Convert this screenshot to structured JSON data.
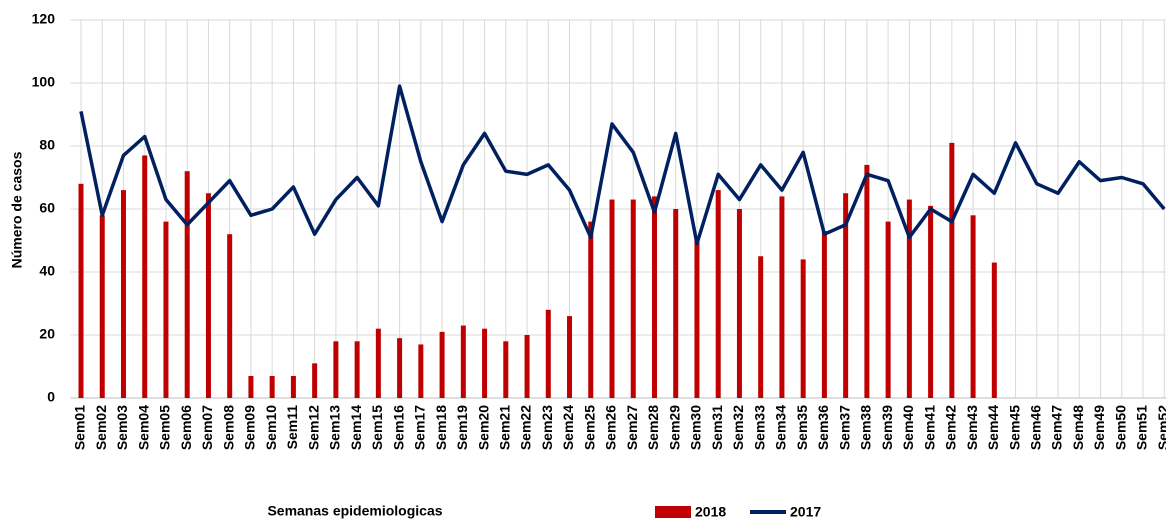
{
  "chart_data": {
    "type": "bar-line",
    "ylabel": "Número de casos",
    "xlabel": "Semanas epidemiologicas",
    "categories": [
      "Sem01",
      "Sem02",
      "Sem03",
      "Sem04",
      "Sem05",
      "Sem06",
      "Sem07",
      "Sem08",
      "Sem09",
      "Sem10",
      "Sem11",
      "Sem12",
      "Sem13",
      "Sem14",
      "Sem15",
      "Sem16",
      "Sem17",
      "Sem18",
      "Sem19",
      "Sem20",
      "Sem21",
      "Sem22",
      "Sem23",
      "Sem24",
      "Sem25",
      "Sem26",
      "Sem27",
      "Sem28",
      "Sem29",
      "Sem30",
      "Sem31",
      "Sem32",
      "Sem33",
      "Sem34",
      "Sem35",
      "Sem36",
      "Sem37",
      "Sem38",
      "Sem39",
      "Sem40",
      "Sem41",
      "Sem42",
      "Sem43",
      "Sem44",
      "Sem45",
      "Sem46",
      "Sem47",
      "Sem48",
      "Sem49",
      "Sem50",
      "Sem51",
      "Sem52"
    ],
    "series": [
      {
        "name": "2018",
        "type": "bar",
        "color": "#c00000",
        "values": [
          68,
          58,
          66,
          77,
          56,
          72,
          65,
          52,
          7,
          7,
          7,
          11,
          18,
          18,
          22,
          19,
          17,
          21,
          23,
          22,
          18,
          20,
          28,
          26,
          56,
          63,
          63,
          64,
          60,
          50,
          66,
          60,
          45,
          64,
          44,
          53,
          65,
          74,
          56,
          63,
          61,
          81,
          58,
          43,
          null,
          null,
          null,
          null,
          null,
          null,
          null,
          null
        ]
      },
      {
        "name": "2017",
        "type": "line",
        "color": "#002060",
        "values": [
          91,
          58,
          77,
          83,
          63,
          55,
          62,
          69,
          58,
          60,
          67,
          52,
          63,
          70,
          61,
          99,
          75,
          56,
          74,
          84,
          72,
          71,
          74,
          66,
          51,
          87,
          78,
          59,
          84,
          49,
          71,
          63,
          74,
          66,
          78,
          52,
          55,
          71,
          69,
          51,
          60,
          56,
          71,
          65,
          81,
          68,
          65,
          75,
          69,
          70,
          68,
          60
        ]
      }
    ],
    "ylim": [
      0,
      120
    ],
    "yticks": [
      0,
      20,
      40,
      60,
      80,
      100,
      120
    ],
    "grid": true
  }
}
